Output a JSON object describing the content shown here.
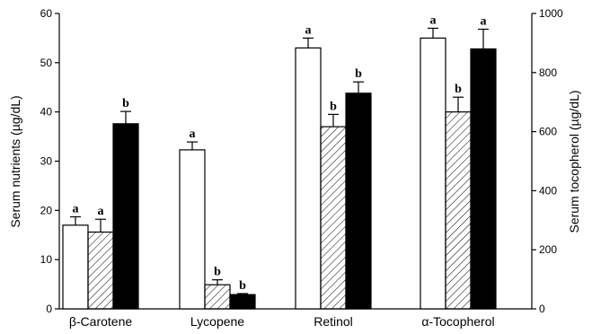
{
  "chart_data": {
    "type": "bar",
    "categories": [
      "β-Carotene",
      "Lycopene",
      "Retinol",
      "α-Tocopherol"
    ],
    "series": [
      {
        "style": "open",
        "values": [
          17.0,
          32.3,
          53.0,
          55.0
        ],
        "errors": [
          1.7,
          1.6,
          2.0,
          2.0
        ]
      },
      {
        "style": "hatched",
        "values": [
          15.6,
          4.9,
          37.0,
          40.0
        ],
        "errors": [
          2.6,
          1.0,
          2.5,
          3.0
        ]
      },
      {
        "style": "solid",
        "values": [
          37.6,
          2.9,
          43.8,
          52.8
        ],
        "errors": [
          2.5,
          0.2,
          2.3,
          4.0
        ]
      }
    ],
    "significance": [
      [
        "a",
        "a",
        "b"
      ],
      [
        "a",
        "b",
        "b"
      ],
      [
        "a",
        "b",
        "b"
      ],
      [
        "a",
        "b",
        "a"
      ]
    ],
    "left_axis": {
      "label": "Serum nutrients (µg/dL)",
      "ylim": [
        0,
        60
      ],
      "ticks": [
        "0",
        "10",
        "20",
        "30",
        "40",
        "50",
        "60"
      ]
    },
    "right_axis": {
      "label": "Serum tocopherol (µg/dL)",
      "ylim": [
        0,
        1000
      ],
      "ticks": [
        "0",
        "200",
        "400",
        "600",
        "800",
        "1000"
      ],
      "applies_to": "α-Tocopherol"
    },
    "title": "",
    "xlabel": "",
    "grid": false,
    "legend": "none",
    "colors": {
      "open": "#ffffff",
      "solid": "#000000",
      "hatch": "#000000"
    }
  }
}
